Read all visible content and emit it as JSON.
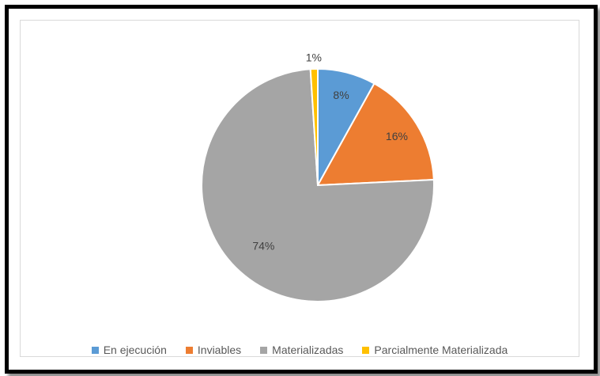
{
  "chart_data": {
    "type": "pie",
    "categories": [
      "En ejecución",
      "Inviables",
      "Materializadas",
      "Parcialmente Materializada"
    ],
    "values": [
      8,
      16,
      74,
      1
    ],
    "labels": [
      "8%",
      "16%",
      "74%",
      "1%"
    ],
    "colors": [
      "#5B9BD5",
      "#ED7D31",
      "#A5A5A5",
      "#FFC000"
    ],
    "legend_position": "bottom"
  }
}
